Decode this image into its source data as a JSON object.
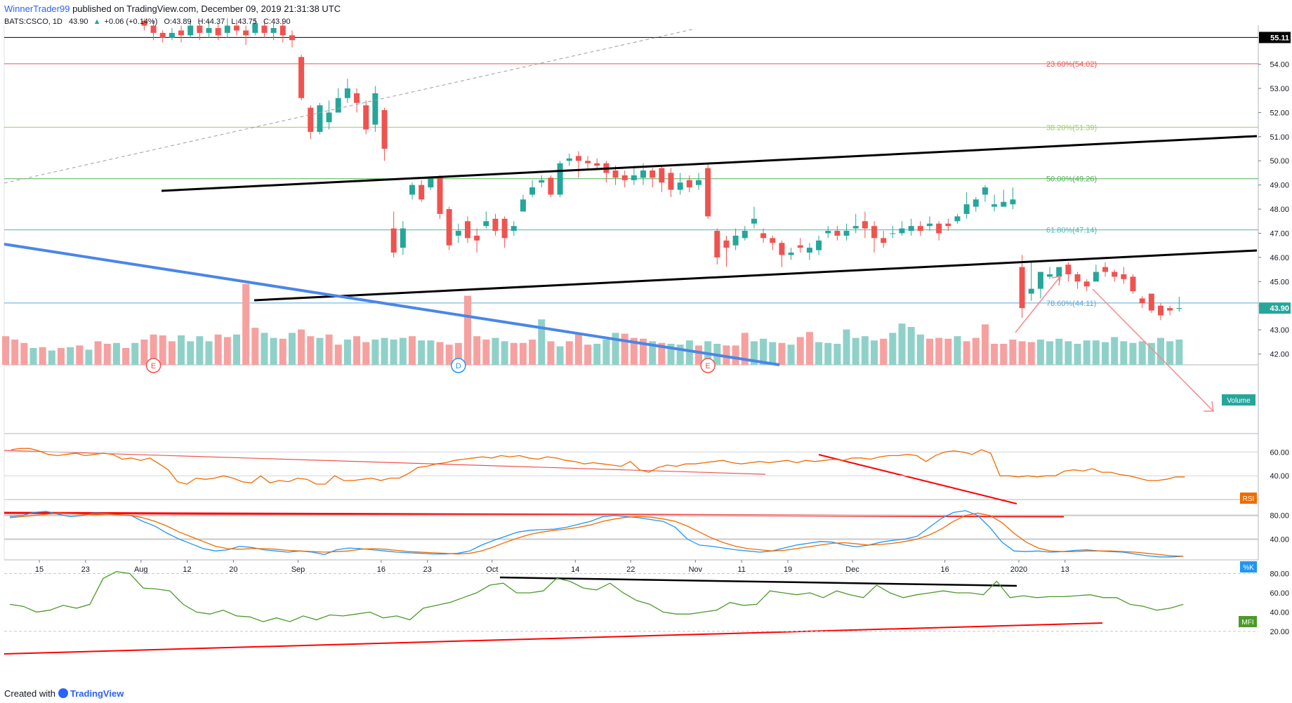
{
  "header": {
    "author": "WinnerTrader99",
    "published_text": "published on TradingView.com, December 09, 2019 21:31:38 UTC"
  },
  "footer": {
    "created_with": "Created with",
    "brand": "TradingView"
  },
  "colors": {
    "up": "#26a69a",
    "down": "#ef5350",
    "vol_up": "#8fd1c9",
    "vol_down": "#f6a1a0",
    "fib_236": "#ef5350",
    "fib_382": "#9ccc65",
    "fib_500": "#4caf50",
    "fib_618": "#4db6ac",
    "fib_786": "#5aa6d6",
    "blue_trend": "#4a86e8",
    "rsi_line": "#ef6c00",
    "stoch_k": "#2196f3",
    "stoch_d": "#ef6c00",
    "mfi_line": "#4c9a2a",
    "annotation_arrow": "#f48a8a"
  },
  "chart_data": {
    "type": "candlestick",
    "symbol": "BATS:CSCO",
    "interval": "1D",
    "legend": {
      "symbol_text": "BATS:CSCO, 1D",
      "last": "43.90",
      "change": "+0.06 (+0.14%)",
      "open_label": "O:",
      "open": "43.89",
      "high_label": "H:",
      "high": "44.37",
      "low_label": "L:",
      "low": "43.75",
      "close_label": "C:",
      "close": "43.90"
    },
    "price_axis": {
      "ticks": [
        "54.00",
        "53.00",
        "52.00",
        "51.00",
        "50.00",
        "49.00",
        "48.00",
        "47.00",
        "46.00",
        "45.00",
        "44.00",
        "43.00",
        "42.00"
      ],
      "range": [
        41.55,
        55.5
      ],
      "top_marker": "55.11",
      "last_marker": "43.90"
    },
    "time_axis": {
      "labels": [
        "15",
        "23",
        "Aug",
        "12",
        "20",
        "Sep",
        "16",
        "23",
        "Oct",
        "14",
        "22",
        "Nov",
        "11",
        "19",
        "Dec",
        "16",
        "2020",
        "13"
      ],
      "label_index": [
        0,
        5,
        11,
        16,
        21,
        28,
        37,
        42,
        49,
        58,
        64,
        71,
        76,
        81,
        88,
        98,
        106,
        111
      ]
    },
    "fib_levels": [
      {
        "label": "23.60%(54.02)",
        "price": 54.02
      },
      {
        "label": "38.20%(51.39)",
        "price": 51.39
      },
      {
        "label": "50.00%(49.26)",
        "price": 49.26
      },
      {
        "label": "61.80%(47.14)",
        "price": 47.14
      },
      {
        "label": "78.60%(44.11)",
        "price": 44.11
      }
    ],
    "top_line_price": 55.11,
    "volume_label": "Volume",
    "events": [
      {
        "label": "E",
        "index": 16
      },
      {
        "label": "D",
        "index": 49
      },
      {
        "label": "E",
        "index": 76
      }
    ],
    "candles": [
      [
        15,
        55.8,
        55.6,
        55.9,
        55.4
      ],
      [
        16,
        55.6,
        55.3,
        55.8,
        55.0
      ],
      [
        17,
        55.3,
        55.1,
        55.4,
        54.9
      ],
      [
        18,
        55.1,
        55.3,
        55.5,
        55.0
      ],
      [
        19,
        55.4,
        55.2,
        55.6,
        54.9
      ],
      [
        20,
        55.2,
        55.6,
        55.8,
        55.1
      ],
      [
        21,
        55.6,
        55.3,
        55.7,
        55.0
      ],
      [
        22,
        55.3,
        55.5,
        55.8,
        55.1
      ],
      [
        23,
        55.5,
        55.2,
        55.7,
        55.0
      ],
      [
        24,
        55.3,
        55.6,
        55.9,
        55.1
      ],
      [
        25,
        55.6,
        55.4,
        55.8,
        55.2
      ],
      [
        26,
        55.4,
        55.2,
        55.6,
        54.8
      ],
      [
        27,
        55.3,
        55.7,
        55.9,
        55.2
      ],
      [
        28,
        55.6,
        55.3,
        55.8,
        55.1
      ],
      [
        29,
        55.3,
        55.5,
        55.7,
        55.0
      ],
      [
        30,
        55.6,
        55.2,
        55.8,
        54.9
      ],
      [
        31,
        55.2,
        55.0,
        55.4,
        54.7
      ],
      [
        32,
        54.3,
        52.6,
        54.4,
        52.5
      ],
      [
        33,
        52.2,
        51.2,
        52.3,
        50.9
      ],
      [
        34,
        51.2,
        52.3,
        52.4,
        51.1
      ],
      [
        35,
        51.6,
        52.0,
        52.5,
        51.3
      ],
      [
        36,
        52.0,
        52.6,
        53.0,
        52.1
      ],
      [
        37,
        52.6,
        53.0,
        53.4,
        52.4
      ],
      [
        38,
        52.8,
        52.4,
        53.0,
        52.0
      ],
      [
        39,
        52.3,
        51.3,
        52.5,
        51.1
      ],
      [
        40,
        51.5,
        52.8,
        53.1,
        51.2
      ],
      [
        41,
        52.1,
        50.5,
        52.2,
        50.0
      ],
      [
        42,
        47.2,
        46.2,
        47.9,
        46.0
      ],
      [
        43,
        46.4,
        47.2,
        47.5,
        46.1
      ],
      [
        44,
        48.6,
        49.0,
        49.1,
        48.4
      ],
      [
        45,
        49.0,
        48.4,
        49.2,
        48.3
      ],
      [
        46,
        48.9,
        49.3,
        49.3,
        48.8
      ],
      [
        47,
        49.3,
        47.8,
        49.4,
        47.6
      ],
      [
        48,
        48.0,
        46.5,
        48.1,
        46.3
      ],
      [
        49,
        46.9,
        47.1,
        47.4,
        46.6
      ],
      [
        50,
        47.5,
        46.8,
        47.7,
        46.6
      ],
      [
        51,
        46.9,
        46.7,
        47.2,
        46.2
      ],
      [
        52,
        47.3,
        47.5,
        47.9,
        47.2
      ],
      [
        53,
        47.6,
        47.1,
        47.8,
        46.9
      ],
      [
        54,
        47.6,
        46.8,
        47.7,
        46.4
      ],
      [
        55,
        47.1,
        47.3,
        47.5,
        46.9
      ],
      [
        56,
        47.9,
        48.4,
        48.6,
        47.9
      ],
      [
        57,
        48.6,
        48.9,
        49.2,
        48.5
      ],
      [
        58,
        49.1,
        49.2,
        49.4,
        48.9
      ],
      [
        59,
        49.3,
        48.6,
        49.4,
        48.5
      ],
      [
        60,
        48.6,
        49.9,
        50.0,
        48.5
      ],
      [
        61,
        50.0,
        50.1,
        50.3,
        49.8
      ],
      [
        62,
        50.2,
        50.0,
        50.4,
        49.3
      ],
      [
        63,
        50.0,
        49.9,
        50.2,
        49.6
      ],
      [
        64,
        49.9,
        49.8,
        50.1,
        49.7
      ],
      [
        65,
        49.9,
        49.5,
        50.0,
        49.1
      ],
      [
        66,
        49.6,
        49.3,
        49.8,
        49.0
      ],
      [
        67,
        49.4,
        49.2,
        49.6,
        48.9
      ],
      [
        68,
        49.2,
        49.4,
        49.8,
        49.0
      ],
      [
        69,
        49.3,
        49.6,
        49.9,
        49.0
      ],
      [
        70,
        49.6,
        49.3,
        49.7,
        48.9
      ],
      [
        71,
        49.7,
        49.1,
        49.8,
        48.7
      ],
      [
        72,
        49.5,
        48.8,
        49.7,
        48.5
      ],
      [
        73,
        48.8,
        49.1,
        49.5,
        48.6
      ],
      [
        74,
        49.2,
        48.9,
        49.4,
        48.7
      ],
      [
        75,
        49.0,
        49.2,
        49.5,
        48.8
      ],
      [
        76,
        49.7,
        47.7,
        49.9,
        47.6
      ],
      [
        77,
        47.1,
        46.0,
        47.2,
        45.7
      ],
      [
        78,
        46.7,
        46.4,
        46.9,
        45.6
      ],
      [
        79,
        46.5,
        46.9,
        47.2,
        46.3
      ],
      [
        80,
        46.8,
        47.1,
        47.3,
        46.7
      ],
      [
        81,
        47.4,
        47.6,
        48.1,
        47.2
      ],
      [
        82,
        47.0,
        46.8,
        47.2,
        46.6
      ],
      [
        83,
        46.8,
        46.6,
        46.9,
        46.3
      ],
      [
        84,
        46.6,
        46.1,
        46.7,
        45.6
      ],
      [
        85,
        46.1,
        46.2,
        46.4,
        45.9
      ],
      [
        86,
        46.5,
        46.4,
        46.8,
        46.2
      ],
      [
        87,
        46.2,
        46.4,
        46.6,
        45.9
      ],
      [
        88,
        46.3,
        46.7,
        46.9,
        46.1
      ],
      [
        89,
        47.0,
        47.1,
        47.3,
        46.8
      ],
      [
        90,
        47.1,
        46.9,
        47.3,
        46.7
      ],
      [
        91,
        46.9,
        47.1,
        47.4,
        46.7
      ],
      [
        92,
        47.2,
        47.3,
        47.8,
        47.0
      ],
      [
        93,
        47.5,
        47.2,
        47.9,
        46.8
      ],
      [
        94,
        47.3,
        46.8,
        47.5,
        46.2
      ],
      [
        95,
        46.8,
        46.6,
        47.1,
        46.4
      ],
      [
        96,
        47.0,
        47.0,
        47.3,
        46.8
      ],
      [
        97,
        47.0,
        47.2,
        47.5,
        46.9
      ],
      [
        98,
        47.1,
        47.3,
        47.6,
        46.9
      ],
      [
        99,
        47.3,
        47.1,
        47.5,
        46.9
      ],
      [
        100,
        47.3,
        47.4,
        47.7,
        47.1
      ],
      [
        101,
        47.4,
        47.0,
        47.5,
        46.7
      ],
      [
        102,
        47.4,
        47.3,
        47.6,
        47.1
      ],
      [
        103,
        47.5,
        47.7,
        47.8,
        47.4
      ],
      [
        104,
        47.8,
        48.2,
        48.7,
        47.6
      ],
      [
        105,
        48.1,
        48.4,
        48.5,
        47.9
      ],
      [
        106,
        48.6,
        48.9,
        49.0,
        48.3
      ],
      [
        107,
        48.1,
        48.2,
        48.6,
        47.9
      ],
      [
        108,
        48.1,
        48.3,
        48.8,
        48.1
      ],
      [
        109,
        48.2,
        48.4,
        48.9,
        48.0
      ],
      [
        110,
        45.6,
        43.9,
        46.1,
        43.5
      ],
      [
        111,
        44.5,
        44.7,
        45.8,
        44.2
      ],
      [
        112,
        44.7,
        45.4,
        45.4,
        44.3
      ],
      [
        113,
        45.2,
        45.3,
        45.6,
        45.1
      ],
      [
        114,
        45.2,
        45.6,
        45.6,
        45.0
      ],
      [
        115,
        45.7,
        45.3,
        45.8,
        45.0
      ],
      [
        116,
        45.3,
        45.0,
        45.4,
        44.7
      ],
      [
        117,
        45.0,
        44.8,
        45.1,
        44.6
      ],
      [
        118,
        45.0,
        45.4,
        45.7,
        45.0
      ],
      [
        119,
        45.6,
        45.4,
        45.8,
        45.2
      ],
      [
        120,
        45.4,
        45.2,
        45.5,
        45.0
      ],
      [
        121,
        45.3,
        45.1,
        45.6,
        44.9
      ],
      [
        122,
        45.2,
        44.6,
        45.3,
        44.5
      ],
      [
        123,
        44.3,
        44.1,
        44.4,
        43.9
      ],
      [
        124,
        44.5,
        43.8,
        44.5,
        43.7
      ],
      [
        125,
        44.0,
        43.6,
        44.1,
        43.4
      ],
      [
        126,
        43.9,
        43.8,
        44.0,
        43.6
      ],
      [
        127,
        43.89,
        43.9,
        44.37,
        43.75
      ]
    ],
    "volumes": [
      0.34,
      0.3,
      0.26,
      0.2,
      0.21,
      0.17,
      0.2,
      0.21,
      0.23,
      0.18,
      0.28,
      0.25,
      0.26,
      0.2,
      0.26,
      0.3,
      0.36,
      0.35,
      0.28,
      0.35,
      0.28,
      0.34,
      0.28,
      0.36,
      0.33,
      0.36,
      0.96,
      0.44,
      0.38,
      0.32,
      0.31,
      0.38,
      0.42,
      0.34,
      0.32,
      0.36,
      0.24,
      0.3,
      0.34,
      0.27,
      0.3,
      0.32,
      0.3,
      0.32,
      0.34,
      0.29,
      0.29,
      0.27,
      0.24,
      0.26,
      0.82,
      0.34,
      0.3,
      0.32,
      0.28,
      0.26,
      0.26,
      0.3,
      0.54,
      0.28,
      0.22,
      0.28,
      0.38,
      0.24,
      0.25,
      0.3,
      0.38,
      0.37,
      0.32,
      0.31,
      0.28,
      0.26,
      0.25,
      0.24,
      0.29,
      0.23,
      0.28,
      0.25,
      0.23,
      0.23,
      0.38,
      0.28,
      0.31,
      0.27,
      0.26,
      0.24,
      0.33,
      0.39,
      0.27,
      0.26,
      0.25,
      0.42,
      0.32,
      0.34,
      0.29,
      0.31,
      0.38,
      0.49,
      0.45,
      0.36,
      0.31,
      0.32,
      0.31,
      0.34,
      0.28,
      0.32,
      0.48,
      0.25,
      0.25,
      0.3,
      0.28,
      0.27,
      0.3,
      0.28,
      0.31,
      0.28,
      0.25,
      0.29,
      0.29,
      0.27,
      0.33,
      0.28,
      0.26,
      0.28,
      0.26,
      0.32,
      0.28,
      0.3
    ],
    "rsi": {
      "label": "RSI",
      "ticks": [
        "60.00",
        "40.00"
      ],
      "range": [
        20,
        72
      ],
      "values": [
        62,
        63,
        63,
        61,
        58,
        57,
        58,
        59,
        57,
        58,
        59,
        58,
        54,
        55,
        53,
        55,
        50,
        45,
        35,
        33,
        38,
        37,
        38,
        40,
        38,
        35,
        34,
        40,
        34,
        36,
        35,
        38,
        37,
        33,
        33,
        40,
        36,
        36,
        37,
        38,
        36,
        38,
        38,
        42,
        47,
        48,
        50,
        51,
        53,
        54,
        55,
        56,
        55,
        57,
        56,
        57,
        55,
        54,
        56,
        55,
        53,
        52,
        50,
        51,
        50,
        49,
        48,
        52,
        45,
        43,
        47,
        49,
        48,
        50,
        50,
        51,
        52,
        53,
        51,
        50,
        51,
        52,
        51,
        52,
        53,
        51,
        53,
        52,
        53,
        54,
        53,
        55,
        55,
        54,
        56,
        57,
        57,
        58,
        57,
        52,
        57,
        60,
        61,
        60,
        58,
        62,
        59,
        40,
        40,
        39,
        40,
        39,
        40,
        40,
        44,
        45,
        44,
        46,
        43,
        43,
        41,
        40,
        38,
        36,
        36,
        37,
        39,
        39
      ]
    },
    "stoch": {
      "label": "%K",
      "ticks": [
        "80.00",
        "40.00"
      ],
      "range": [
        5,
        95
      ],
      "k": [
        78,
        80,
        85,
        87,
        82,
        78,
        80,
        84,
        83,
        81,
        80,
        70,
        62,
        50,
        40,
        32,
        24,
        20,
        22,
        28,
        26,
        22,
        20,
        18,
        20,
        18,
        14,
        22,
        25,
        24,
        22,
        20,
        18,
        17,
        16,
        15,
        15,
        16,
        20,
        30,
        38,
        45,
        52,
        55,
        56,
        57,
        60,
        65,
        70,
        78,
        80,
        78,
        76,
        73,
        70,
        60,
        40,
        30,
        28,
        25,
        22,
        20,
        18,
        20,
        25,
        30,
        33,
        36,
        35,
        30,
        27,
        30,
        35,
        38,
        40,
        45,
        60,
        75,
        85,
        88,
        80,
        60,
        35,
        20,
        19,
        20,
        18,
        19,
        21,
        22,
        20,
        19,
        18,
        15,
        12,
        10,
        10,
        11
      ],
      "d": [
        76,
        78,
        80,
        82,
        84,
        83,
        82,
        81,
        82,
        81,
        80,
        76,
        70,
        62,
        52,
        44,
        36,
        28,
        24,
        23,
        24,
        24,
        23,
        21,
        20,
        19,
        18,
        19,
        20,
        23,
        24,
        23,
        21,
        19,
        18,
        17,
        16,
        15,
        16,
        20,
        27,
        35,
        42,
        48,
        52,
        55,
        57,
        60,
        64,
        70,
        74,
        77,
        78,
        77,
        74,
        70,
        62,
        52,
        42,
        34,
        28,
        24,
        22,
        20,
        21,
        24,
        27,
        30,
        33,
        34,
        32,
        30,
        31,
        33,
        36,
        40,
        47,
        57,
        70,
        80,
        84,
        80,
        68,
        50,
        35,
        25,
        20,
        19,
        19,
        20,
        20,
        20,
        19,
        18,
        16,
        14,
        12,
        11
      ]
    },
    "mfi": {
      "label": "MFI",
      "ticks": [
        "80.00",
        "60.00",
        "40.00",
        "20.00"
      ],
      "range": [
        17,
        84
      ],
      "values": [
        48,
        46,
        40,
        42,
        47,
        44,
        48,
        75,
        82,
        80,
        65,
        64,
        62,
        48,
        40,
        38,
        42,
        36,
        35,
        30,
        34,
        30,
        36,
        32,
        37,
        36,
        38,
        40,
        34,
        36,
        32,
        44,
        47,
        50,
        55,
        60,
        68,
        70,
        60,
        60,
        62,
        75,
        72,
        65,
        63,
        70,
        60,
        52,
        48,
        40,
        38,
        38,
        40,
        42,
        50,
        47,
        48,
        62,
        60,
        58,
        60,
        55,
        62,
        58,
        55,
        68,
        60,
        55,
        58,
        60,
        62,
        60,
        60,
        58,
        72,
        55,
        57,
        55,
        56,
        56,
        57,
        58,
        55,
        55,
        48,
        46,
        42,
        44,
        48
      ]
    }
  }
}
